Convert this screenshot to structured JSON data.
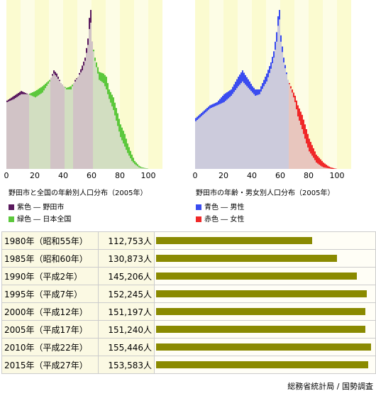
{
  "colors": {
    "purple": "#5a1a5e",
    "green": "#5cc83c",
    "blue": "#3a4cf0",
    "red": "#f02828",
    "bar": "#8a8a00"
  },
  "left": {
    "caption": "野田市と全国の年齢別人口分布（2005年）",
    "legend": [
      {
        "swatch": "#5a1a5e",
        "label": "紫色 ― 野田市"
      },
      {
        "swatch": "#5cc83c",
        "label": "緑色 ― 日本全国"
      }
    ]
  },
  "right": {
    "caption": "野田市の年齢・男女別人口分布（2005年）",
    "legend": [
      {
        "swatch": "#3a4cf0",
        "label": "青色 ― 男性"
      },
      {
        "swatch": "#f02828",
        "label": "赤色 ― 女性"
      }
    ]
  },
  "chart_data": [
    {
      "type": "bar",
      "title": "野田市と全国の年齢別人口分布（2005年）",
      "x_ticks": [
        0,
        20,
        40,
        60,
        80,
        100
      ],
      "x_anchors": [
        0,
        5,
        10,
        15,
        20,
        25,
        30,
        33,
        35,
        38,
        40,
        42,
        45,
        48,
        50,
        53,
        55,
        57,
        58,
        59,
        60,
        62,
        65,
        68,
        70,
        72,
        75,
        78,
        80,
        83,
        85,
        88,
        90,
        93,
        95,
        98,
        100
      ],
      "series": [
        {
          "name": "紫色 ― 野田市",
          "values": [
            0.43,
            0.46,
            0.49,
            0.47,
            0.45,
            0.48,
            0.55,
            0.62,
            0.6,
            0.54,
            0.52,
            0.5,
            0.5,
            0.56,
            0.58,
            0.65,
            0.7,
            0.82,
            0.95,
            1.0,
            0.8,
            0.68,
            0.56,
            0.54,
            0.5,
            0.44,
            0.37,
            0.27,
            0.2,
            0.14,
            0.1,
            0.05,
            0.03,
            0.01,
            0.005,
            0.002,
            0.0
          ]
        },
        {
          "name": "緑色 ― 日本全国",
          "values": [
            0.42,
            0.44,
            0.47,
            0.47,
            0.49,
            0.52,
            0.56,
            0.6,
            0.58,
            0.54,
            0.52,
            0.51,
            0.52,
            0.55,
            0.58,
            0.62,
            0.68,
            0.78,
            0.88,
            0.92,
            0.8,
            0.7,
            0.61,
            0.6,
            0.58,
            0.5,
            0.45,
            0.35,
            0.28,
            0.22,
            0.16,
            0.09,
            0.05,
            0.02,
            0.01,
            0.004,
            0.0
          ]
        }
      ]
    },
    {
      "type": "bar",
      "title": "野田市の年齢・男女別人口分布（2005年）",
      "x_ticks": [
        0,
        20,
        40,
        60,
        80,
        100
      ],
      "x_anchors": [
        0,
        5,
        10,
        15,
        20,
        25,
        30,
        33,
        35,
        38,
        40,
        42,
        45,
        48,
        50,
        53,
        55,
        57,
        58,
        59,
        60,
        62,
        65,
        68,
        70,
        72,
        75,
        78,
        80,
        83,
        85,
        88,
        90,
        93,
        95,
        98,
        100
      ],
      "series": [
        {
          "name": "青色 ― 男性",
          "values": [
            0.32,
            0.36,
            0.4,
            0.42,
            0.47,
            0.5,
            0.58,
            0.62,
            0.59,
            0.55,
            0.52,
            0.5,
            0.5,
            0.56,
            0.6,
            0.67,
            0.74,
            0.86,
            0.96,
            1.0,
            0.84,
            0.7,
            0.56,
            0.48,
            0.42,
            0.33,
            0.25,
            0.16,
            0.11,
            0.07,
            0.04,
            0.02,
            0.01,
            0.005,
            0.002,
            0.0,
            0.0
          ]
        },
        {
          "name": "赤色 ― 女性",
          "values": [
            0.3,
            0.34,
            0.38,
            0.4,
            0.42,
            0.46,
            0.52,
            0.55,
            0.53,
            0.5,
            0.48,
            0.46,
            0.47,
            0.52,
            0.55,
            0.63,
            0.7,
            0.8,
            0.9,
            0.94,
            0.8,
            0.67,
            0.56,
            0.5,
            0.46,
            0.4,
            0.34,
            0.25,
            0.19,
            0.13,
            0.09,
            0.06,
            0.04,
            0.02,
            0.01,
            0.003,
            0.0
          ]
        }
      ]
    },
    {
      "type": "bar",
      "title": "",
      "categories": [
        "1980年（昭和55年）",
        "1985年（昭和60年）",
        "1990年（平成2年）",
        "1995年（平成7年）",
        "2000年（平成12年）",
        "2005年（平成17年）",
        "2010年（平成22年）",
        "2015年（平成27年）"
      ],
      "values": [
        112753,
        130873,
        145206,
        152245,
        151197,
        151240,
        155446,
        153583
      ],
      "labels": [
        "112,753人",
        "130,873人",
        "145,206人",
        "152,245人",
        "151,197人",
        "151,240人",
        "155,446人",
        "153,583人"
      ],
      "xlim": [
        0,
        155446
      ]
    }
  ],
  "source": "総務省統計局 / 国勢調査"
}
